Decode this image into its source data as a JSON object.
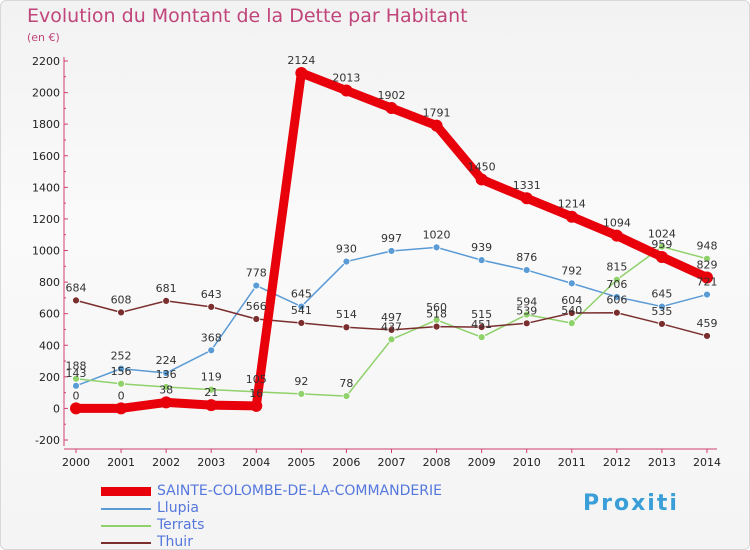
{
  "title": "Evolution du Montant de la Dette par Habitant",
  "unit_label": "(en €)",
  "brand": "Proxiti",
  "chart_data": {
    "type": "line",
    "x": [
      "2000",
      "2001",
      "2002",
      "2003",
      "2004",
      "2005",
      "2006",
      "2007",
      "2008",
      "2009",
      "2010",
      "2011",
      "2012",
      "2013",
      "2014"
    ],
    "ylim": [
      -200,
      2200
    ],
    "yticks": [
      "-200",
      "0",
      "200",
      "400",
      "600",
      "800",
      "1000",
      "1200",
      "1400",
      "1600",
      "1800",
      "2000",
      "2200"
    ],
    "grid": "none",
    "legend": "bottom",
    "series": [
      {
        "name": "SAINTE-COLOMBE-DE-LA-COMMANDERIE",
        "color": "#e8000b",
        "values": [
          0,
          0,
          38,
          21,
          16,
          2124,
          2013,
          1902,
          1791,
          1450,
          1331,
          1214,
          1094,
          959,
          829
        ]
      },
      {
        "name": "Llupia",
        "color": "#5b9bd5",
        "values": [
          143,
          252,
          224,
          368,
          778,
          645,
          930,
          997,
          1020,
          939,
          876,
          792,
          706,
          645,
          721
        ]
      },
      {
        "name": "Terrats",
        "color": "#8fd16b",
        "values": [
          188,
          156,
          136,
          119,
          105,
          92,
          78,
          437,
          560,
          451,
          594,
          540,
          815,
          1024,
          948
        ]
      },
      {
        "name": "Thuir",
        "color": "#7a2e2e",
        "values": [
          684,
          608,
          681,
          643,
          566,
          541,
          514,
          497,
          518,
          515,
          539,
          604,
          606,
          535,
          459
        ]
      }
    ]
  }
}
